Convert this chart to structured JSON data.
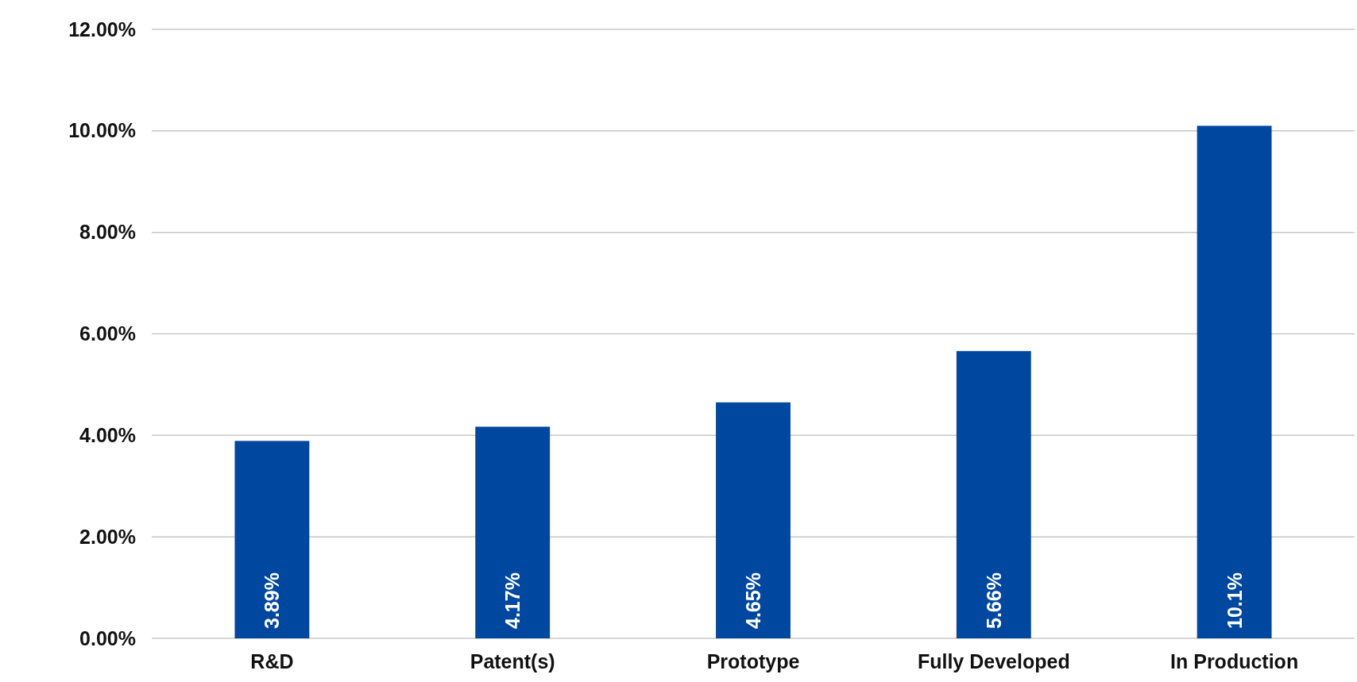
{
  "chart_data": {
    "type": "bar",
    "categories": [
      "R&D",
      "Patent(s)",
      "Prototype",
      "Fully Developed",
      "In Production"
    ],
    "values": [
      3.89,
      4.17,
      4.65,
      5.66,
      10.1
    ],
    "value_labels": [
      "3.89%",
      "4.17%",
      "4.65%",
      "5.66%",
      "10.1%"
    ],
    "color": "#0047a0",
    "ylim": [
      0,
      12
    ],
    "yticks": [
      {
        "value": 0,
        "label": "0.00%"
      },
      {
        "value": 2,
        "label": "2.00%"
      },
      {
        "value": 4,
        "label": "4.00%"
      },
      {
        "value": 6,
        "label": "6.00%"
      },
      {
        "value": 8,
        "label": "8.00%"
      },
      {
        "value": 10,
        "label": "10.00%"
      },
      {
        "value": 12,
        "label": "12.00%"
      }
    ],
    "grid": "y"
  }
}
